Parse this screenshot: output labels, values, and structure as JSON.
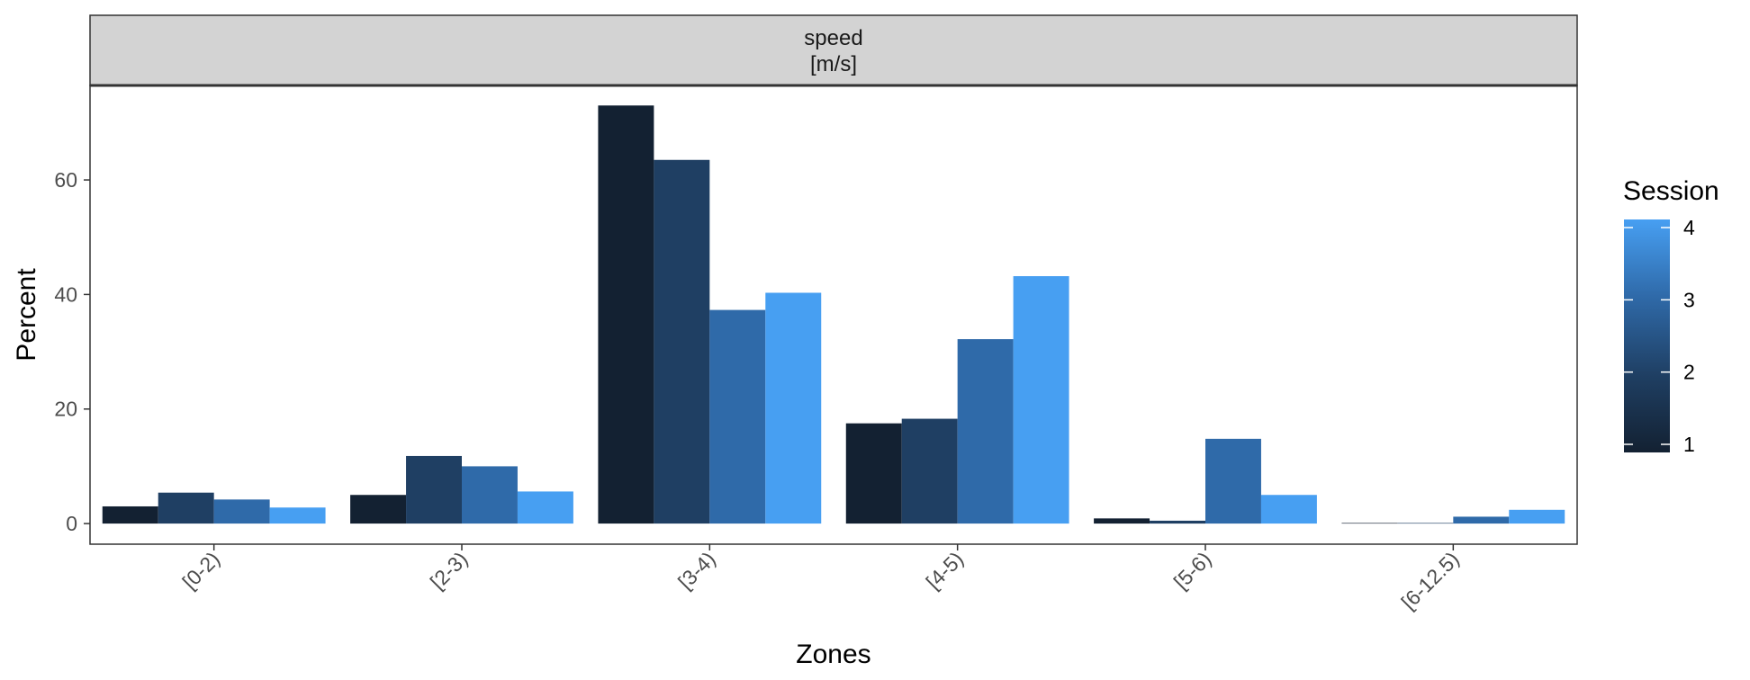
{
  "chart_data": {
    "type": "bar",
    "facet_label": [
      "speed",
      "[m/s]"
    ],
    "xlabel": "Zones",
    "ylabel": "Percent",
    "categories": [
      "[0-2)",
      "[2-3)",
      "[3-4)",
      "[4-5)",
      "[5-6)",
      "[6-12.5)"
    ],
    "yticks": [
      0,
      20,
      40,
      60
    ],
    "ylim": [
      -3.6,
      76.5
    ],
    "legend": {
      "title": "Session",
      "labels": [
        "4",
        "3",
        "2",
        "1"
      ],
      "min": 1,
      "max": 4,
      "position": "right"
    },
    "series": [
      {
        "name": "1",
        "color": "#132132",
        "values": [
          3.0,
          5.0,
          73.0,
          17.5,
          0.9,
          0.1
        ]
      },
      {
        "name": "2",
        "color": "#1f3f63",
        "values": [
          5.4,
          11.8,
          63.5,
          18.3,
          0.5,
          0.1
        ]
      },
      {
        "name": "3",
        "color": "#2f6aa9",
        "values": [
          4.2,
          10.0,
          37.3,
          32.2,
          14.8,
          1.2
        ]
      },
      {
        "name": "4",
        "color": "#479ff2",
        "values": [
          2.8,
          5.6,
          40.3,
          43.2,
          5.0,
          2.4
        ]
      }
    ],
    "grid": false,
    "colors": {
      "strip_fill": "#d3d3d3",
      "panel_border": "#333333",
      "tick_text": "#4d4d4d"
    }
  }
}
